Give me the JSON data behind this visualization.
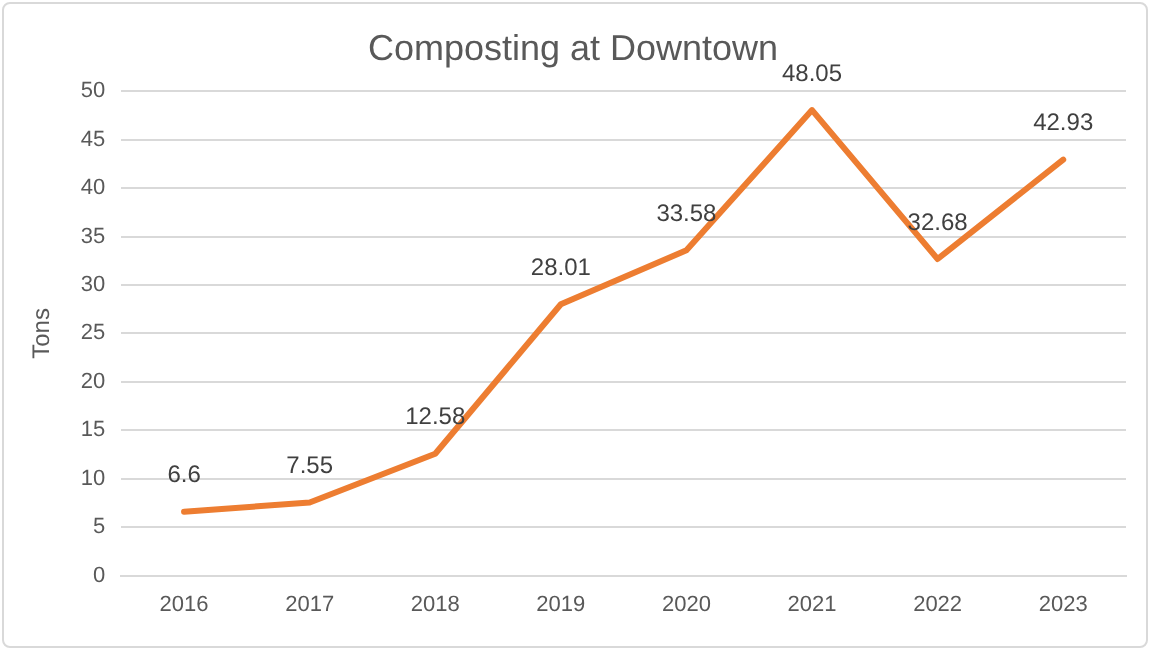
{
  "chart_data": {
    "type": "line",
    "title": "Composting at Downtown",
    "ylabel": "Tons",
    "categories": [
      "2016",
      "2017",
      "2018",
      "2019",
      "2020",
      "2021",
      "2022",
      "2023"
    ],
    "series": [
      {
        "color": "#ed7d31",
        "values": [
          6.6,
          7.55,
          12.58,
          28.01,
          33.58,
          48.05,
          32.68,
          42.93
        ]
      }
    ],
    "ylim": [
      0,
      50
    ],
    "yticks": [
      0,
      5,
      10,
      15,
      20,
      25,
      30,
      35,
      40,
      45,
      50
    ],
    "grid": "y",
    "legend": false,
    "marker": "none",
    "line_style": "solid",
    "data_labels": true
  }
}
